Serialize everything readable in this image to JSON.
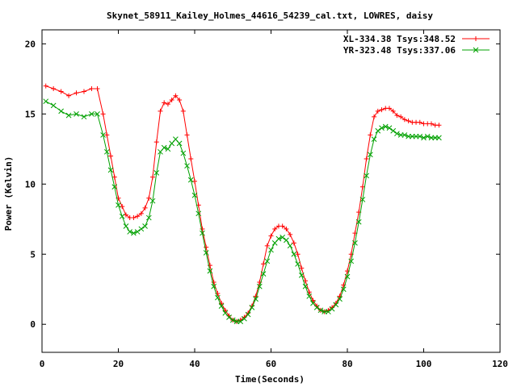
{
  "chart_data": {
    "type": "line",
    "title": "Skynet_58911_Kailey_Holmes_44616_54239_cal.txt, LOWRES, daisy",
    "xlabel": "Time(Seconds)",
    "ylabel": "Power (Kelvin)",
    "xlim": [
      0,
      120
    ],
    "ylim": [
      -2,
      21
    ],
    "xticks": [
      0,
      20,
      40,
      60,
      80,
      100,
      120
    ],
    "yticks": [
      0,
      5,
      10,
      15,
      20
    ],
    "grid": false,
    "legend_position": "top-right",
    "series": [
      {
        "name": "XL-334.38 Tsys:348.52",
        "color": "#ff0000",
        "marker": "plus",
        "x": [
          1,
          3,
          5,
          7,
          9,
          11,
          13,
          14.5,
          16,
          17,
          18,
          19,
          20,
          21,
          22,
          23,
          24,
          25,
          26,
          27,
          28,
          29,
          30,
          31,
          32,
          33,
          34,
          35,
          36,
          37,
          38,
          39,
          40,
          41,
          42,
          43,
          44,
          45,
          46,
          47,
          48,
          49,
          50,
          51,
          52,
          53,
          54,
          55,
          56,
          57,
          58,
          59,
          60,
          61,
          62,
          63,
          64,
          65,
          66,
          67,
          68,
          69,
          70,
          71,
          72,
          73,
          74,
          75,
          76,
          77,
          78,
          79,
          80,
          81,
          82,
          83,
          84,
          85,
          86,
          87,
          88,
          89,
          90,
          91,
          92,
          93,
          94,
          95,
          96,
          97,
          98,
          99,
          100,
          101,
          102,
          103,
          104
        ],
        "y": [
          17.0,
          16.8,
          16.6,
          16.3,
          16.5,
          16.6,
          16.8,
          16.8,
          15.0,
          13.5,
          12.0,
          10.5,
          9.0,
          8.4,
          7.8,
          7.6,
          7.6,
          7.7,
          7.9,
          8.3,
          9.0,
          10.5,
          13.0,
          15.2,
          15.8,
          15.7,
          16.0,
          16.3,
          16.0,
          15.2,
          13.5,
          11.8,
          10.2,
          8.5,
          6.8,
          5.5,
          4.2,
          3.0,
          2.2,
          1.5,
          1.0,
          0.6,
          0.3,
          0.2,
          0.3,
          0.5,
          0.8,
          1.3,
          2.0,
          3.0,
          4.3,
          5.6,
          6.3,
          6.8,
          7.0,
          7.0,
          6.8,
          6.4,
          5.8,
          5.0,
          4.0,
          3.1,
          2.3,
          1.7,
          1.3,
          1.0,
          0.9,
          1.0,
          1.2,
          1.5,
          2.0,
          2.8,
          3.8,
          5.0,
          6.5,
          8.0,
          9.8,
          11.8,
          13.5,
          14.8,
          15.2,
          15.3,
          15.4,
          15.4,
          15.2,
          14.9,
          14.8,
          14.6,
          14.5,
          14.4,
          14.4,
          14.4,
          14.3,
          14.3,
          14.3,
          14.2,
          14.2
        ]
      },
      {
        "name": "YR-323.48 Tsys:337.06",
        "color": "#00a000",
        "marker": "cross",
        "x": [
          1,
          3,
          5,
          7,
          9,
          11,
          13,
          14.5,
          16,
          17,
          18,
          19,
          20,
          21,
          22,
          23,
          24,
          25,
          26,
          27,
          28,
          29,
          30,
          31,
          32,
          33,
          34,
          35,
          36,
          37,
          38,
          39,
          40,
          41,
          42,
          43,
          44,
          45,
          46,
          47,
          48,
          49,
          50,
          51,
          52,
          53,
          54,
          55,
          56,
          57,
          58,
          59,
          60,
          61,
          62,
          63,
          64,
          65,
          66,
          67,
          68,
          69,
          70,
          71,
          72,
          73,
          74,
          75,
          76,
          77,
          78,
          79,
          80,
          81,
          82,
          83,
          84,
          85,
          86,
          87,
          88,
          89,
          90,
          91,
          92,
          93,
          94,
          95,
          96,
          97,
          98,
          99,
          100,
          101,
          102,
          103,
          104
        ],
        "y": [
          15.9,
          15.6,
          15.2,
          14.9,
          15.0,
          14.8,
          15.0,
          15.0,
          13.5,
          12.3,
          11.0,
          9.8,
          8.5,
          7.7,
          7.0,
          6.6,
          6.5,
          6.6,
          6.8,
          7.0,
          7.6,
          8.8,
          10.8,
          12.3,
          12.6,
          12.5,
          12.9,
          13.2,
          12.9,
          12.2,
          11.3,
          10.3,
          9.2,
          7.9,
          6.5,
          5.1,
          3.8,
          2.7,
          1.9,
          1.3,
          0.8,
          0.5,
          0.3,
          0.2,
          0.2,
          0.4,
          0.7,
          1.2,
          1.8,
          2.7,
          3.6,
          4.5,
          5.3,
          5.8,
          6.1,
          6.2,
          6.0,
          5.6,
          5.0,
          4.3,
          3.5,
          2.7,
          2.0,
          1.5,
          1.2,
          1.0,
          0.9,
          0.9,
          1.1,
          1.4,
          1.8,
          2.5,
          3.4,
          4.5,
          5.8,
          7.3,
          8.9,
          10.6,
          12.1,
          13.2,
          13.8,
          14.0,
          14.1,
          14.0,
          13.8,
          13.6,
          13.5,
          13.5,
          13.4,
          13.4,
          13.4,
          13.4,
          13.3,
          13.4,
          13.3,
          13.3,
          13.3
        ]
      }
    ]
  }
}
